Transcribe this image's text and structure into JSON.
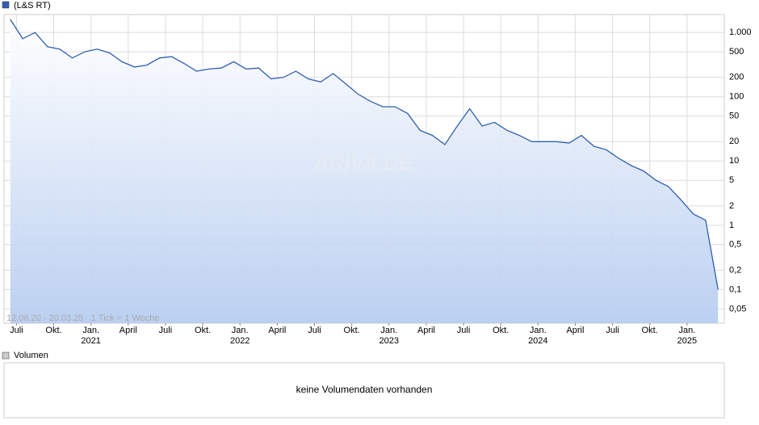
{
  "chart_data": {
    "type": "line",
    "series": [
      {
        "name": "(L&S RT)",
        "color": "#2f5fb0",
        "values": [
          1600,
          800,
          1000,
          600,
          550,
          400,
          500,
          550,
          480,
          350,
          290,
          310,
          400,
          420,
          330,
          250,
          270,
          280,
          350,
          270,
          280,
          190,
          200,
          250,
          190,
          170,
          230,
          160,
          110,
          85,
          70,
          70,
          55,
          30,
          25,
          18,
          35,
          65,
          35,
          40,
          30,
          25,
          20,
          20,
          20,
          19,
          25,
          17,
          15,
          11,
          8.5,
          7,
          5,
          4,
          2.5,
          1.5,
          1.2,
          0.1
        ]
      }
    ],
    "x": [
      "2020-06",
      "2020-07",
      "2020-08",
      "2020-09",
      "2020-10",
      "2020-11",
      "2020-12",
      "2021-01",
      "2021-02",
      "2021-03",
      "2021-04",
      "2021-05",
      "2021-06",
      "2021-07",
      "2021-08",
      "2021-09",
      "2021-10",
      "2021-11",
      "2021-12",
      "2022-01",
      "2022-02",
      "2022-03",
      "2022-04",
      "2022-05",
      "2022-06",
      "2022-07",
      "2022-08",
      "2022-09",
      "2022-10",
      "2022-11",
      "2022-12",
      "2023-01",
      "2023-02",
      "2023-03",
      "2023-04",
      "2023-05",
      "2023-06",
      "2023-07",
      "2023-08",
      "2023-09",
      "2023-10",
      "2023-11",
      "2023-12",
      "2024-01",
      "2024-02",
      "2024-03",
      "2024-04",
      "2024-05",
      "2024-06",
      "2024-07",
      "2024-08",
      "2024-09",
      "2024-10",
      "2024-11",
      "2024-12",
      "2025-01",
      "2025-02",
      "2025-03"
    ],
    "xlim": [
      "2020-06",
      "2025-03"
    ],
    "xticks": [
      {
        "value": "2020-07",
        "label": "Juli"
      },
      {
        "value": "2020-10",
        "label": "Okt."
      },
      {
        "value": "2021-01",
        "label": "Jan."
      },
      {
        "value": "2021-04",
        "label": "April"
      },
      {
        "value": "2021-07",
        "label": "Juli"
      },
      {
        "value": "2021-10",
        "label": "Okt."
      },
      {
        "value": "2022-01",
        "label": "Jan."
      },
      {
        "value": "2022-04",
        "label": "April"
      },
      {
        "value": "2022-07",
        "label": "Juli"
      },
      {
        "value": "2022-10",
        "label": "Okt."
      },
      {
        "value": "2023-01",
        "label": "Jan."
      },
      {
        "value": "2023-04",
        "label": "April"
      },
      {
        "value": "2023-07",
        "label": "Juli"
      },
      {
        "value": "2023-10",
        "label": "Okt."
      },
      {
        "value": "2024-01",
        "label": "Jan."
      },
      {
        "value": "2024-04",
        "label": "April"
      },
      {
        "value": "2024-07",
        "label": "Juli"
      },
      {
        "value": "2024-10",
        "label": "Okt."
      },
      {
        "value": "2025-01",
        "label": "Jan."
      }
    ],
    "year_labels": [
      {
        "value": "2021-01",
        "label": "2021"
      },
      {
        "value": "2022-01",
        "label": "2022"
      },
      {
        "value": "2023-01",
        "label": "2023"
      },
      {
        "value": "2024-01",
        "label": "2024"
      },
      {
        "value": "2025-01",
        "label": "2025"
      }
    ],
    "log_y": true,
    "ylim": [
      0.03,
      1900
    ],
    "yticks": [
      {
        "value": 1000,
        "label": "1.000"
      },
      500,
      200,
      100,
      50,
      20,
      10,
      5,
      2,
      1,
      {
        "value": 0.5,
        "label": "0,5"
      },
      {
        "value": 0.2,
        "label": "0,2"
      },
      {
        "value": 0.1,
        "label": "0,1"
      },
      {
        "value": 0.05,
        "label": "0,05"
      }
    ],
    "grid": true,
    "date_range": "12.06.20 - 20.03.25",
    "tick_note": "1 Tick = 1 Woche",
    "watermark": "ARIVA.DE",
    "volume_title": "Volumen",
    "volume_note": "keine Volumendaten vorhanden"
  }
}
